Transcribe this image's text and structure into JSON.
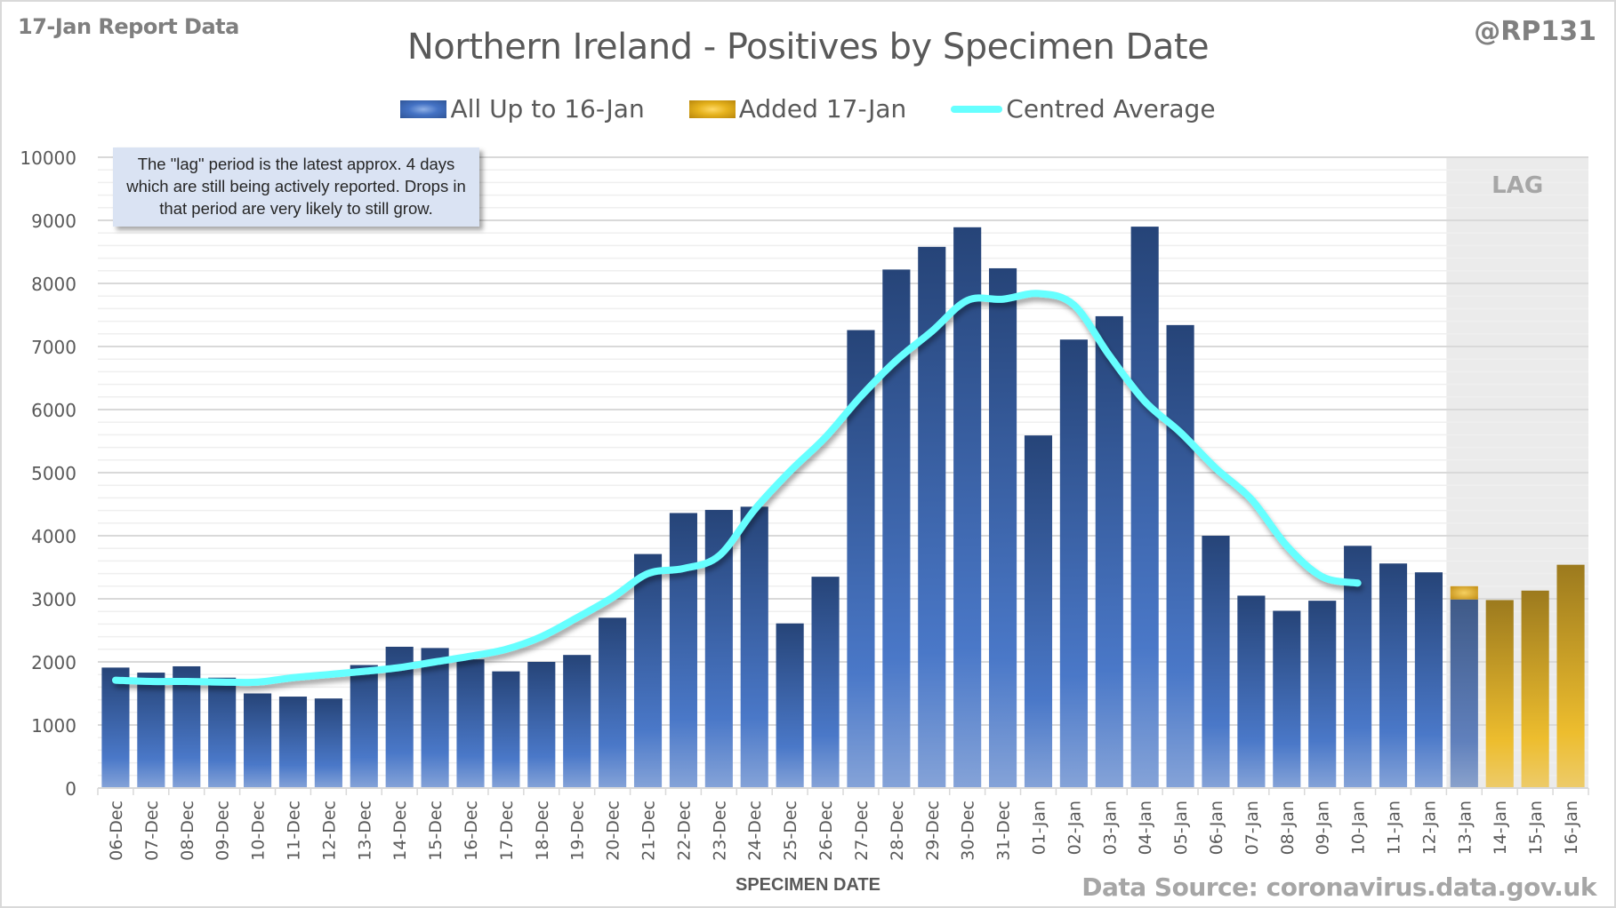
{
  "header": {
    "report_label": "17-Jan Report Data",
    "handle": "@RP131",
    "title": "Northern Ireland - Positives by Specimen Date"
  },
  "legend": [
    {
      "label": "All Up to 16-Jan",
      "icon": "blue-bar-swatch"
    },
    {
      "label": "Added 17-Jan",
      "icon": "gold-bar-swatch"
    },
    {
      "label": "Centred Average",
      "icon": "cyan-line-swatch"
    }
  ],
  "annotation": "The \"lag\" period is the latest approx. 4 days which are still being actively reported. Drops in that period are very likely to still grow.",
  "lag_label": "LAG",
  "xlabel": "SPECIMEN DATE",
  "source": "Data Source: coronavirus.data.gov.uk",
  "colors": {
    "blue_dark": "#264478",
    "blue_light": "#4a78c8",
    "gold_dark": "#9c7a1e",
    "gold_light": "#f0c030",
    "average_line": "#66ffff",
    "lag_shade": "#ebebeb",
    "text_grey": "#595959"
  },
  "chart_data": {
    "type": "bar",
    "stacked": true,
    "title": "Northern Ireland - Positives by Specimen Date",
    "xlabel": "SPECIMEN DATE",
    "ylabel": "",
    "ylim": [
      0,
      10000
    ],
    "yticks": [
      0,
      1000,
      2000,
      3000,
      4000,
      5000,
      6000,
      7000,
      8000,
      9000,
      10000
    ],
    "minor_grid_step": 200,
    "grid": true,
    "legend_position": "top-center",
    "lag_region": {
      "start": "13-Jan",
      "end": "16-Jan",
      "label": "LAG"
    },
    "categories": [
      "06-Dec",
      "07-Dec",
      "08-Dec",
      "09-Dec",
      "10-Dec",
      "11-Dec",
      "12-Dec",
      "13-Dec",
      "14-Dec",
      "15-Dec",
      "16-Dec",
      "17-Dec",
      "18-Dec",
      "19-Dec",
      "20-Dec",
      "21-Dec",
      "22-Dec",
      "23-Dec",
      "24-Dec",
      "25-Dec",
      "26-Dec",
      "27-Dec",
      "28-Dec",
      "29-Dec",
      "30-Dec",
      "31-Dec",
      "01-Jan",
      "02-Jan",
      "03-Jan",
      "04-Jan",
      "05-Jan",
      "06-Jan",
      "07-Jan",
      "08-Jan",
      "09-Jan",
      "10-Jan",
      "11-Jan",
      "12-Jan",
      "13-Jan",
      "14-Jan",
      "15-Jan",
      "16-Jan"
    ],
    "series": [
      {
        "name": "All Up to 16-Jan",
        "type": "bar",
        "values": [
          1910,
          1830,
          1930,
          1750,
          1500,
          1450,
          1420,
          1950,
          2240,
          2220,
          2040,
          1850,
          2000,
          2110,
          2700,
          3710,
          4360,
          4410,
          4460,
          2610,
          3350,
          7260,
          8220,
          8580,
          8890,
          8240,
          5590,
          7110,
          7480,
          8900,
          7340,
          4000,
          3050,
          2810,
          2970,
          3840,
          3560,
          3420,
          2990,
          0,
          0,
          0
        ]
      },
      {
        "name": "Added 17-Jan",
        "type": "bar",
        "values": [
          0,
          0,
          0,
          0,
          0,
          0,
          0,
          0,
          0,
          0,
          0,
          0,
          0,
          0,
          0,
          0,
          0,
          0,
          0,
          0,
          0,
          0,
          0,
          0,
          0,
          0,
          0,
          0,
          0,
          0,
          0,
          0,
          0,
          0,
          0,
          0,
          0,
          0,
          210,
          2980,
          3130,
          3540
        ]
      },
      {
        "name": "Centred Average",
        "type": "line",
        "values": [
          1710,
          1690,
          1690,
          1680,
          1680,
          1750,
          1800,
          1850,
          1910,
          2000,
          2090,
          2200,
          2400,
          2700,
          3020,
          3400,
          3480,
          3680,
          4410,
          5020,
          5560,
          6210,
          6780,
          7240,
          7730,
          7750,
          7840,
          7660,
          6860,
          6130,
          5640,
          5070,
          4580,
          3840,
          3350,
          3250,
          null,
          null,
          null,
          null,
          null,
          null
        ]
      }
    ]
  }
}
